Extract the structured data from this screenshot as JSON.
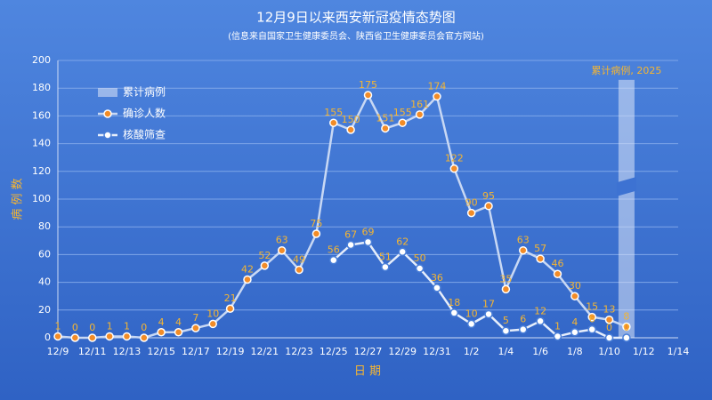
{
  "chart_data": {
    "type": "line",
    "title": "12月9日以来西安新冠疫情态势图",
    "subtitle": "(信息来自国家卫生健康委员会、陕西省卫生健康委员会官方网站)",
    "x_label": "日 期",
    "y_label": "病 例 数",
    "categories": [
      "12/9",
      null,
      "12/11",
      null,
      "12/13",
      null,
      "12/15",
      null,
      "12/17",
      null,
      "12/19",
      null,
      "12/21",
      null,
      "12/23",
      null,
      "12/25",
      null,
      "12/27",
      null,
      "12/29",
      null,
      "12/31",
      null,
      "1/2",
      null,
      "1/4",
      null,
      "1/6",
      null,
      "1/8",
      null,
      "1/10",
      null,
      "1/12",
      null,
      "1/14"
    ],
    "ylim": [
      0,
      200
    ],
    "yticks": [
      0,
      20,
      40,
      60,
      80,
      100,
      120,
      140,
      160,
      180,
      200
    ],
    "grid": true,
    "legend": "top-left",
    "series": [
      {
        "name": "确诊人数",
        "color": "#f28c28",
        "values": [
          1,
          0,
          0,
          1,
          1,
          0,
          4,
          4,
          7,
          10,
          21,
          42,
          52,
          63,
          49,
          75,
          155,
          150,
          175,
          151,
          155,
          161,
          174,
          122,
          90,
          95,
          35,
          63,
          57,
          46,
          30,
          15,
          13,
          8,
          null,
          null,
          null
        ]
      },
      {
        "name": "核酸筛查",
        "color": "#ffffff",
        "values": [
          null,
          null,
          null,
          null,
          null,
          null,
          null,
          null,
          null,
          null,
          null,
          null,
          null,
          null,
          null,
          null,
          56,
          67,
          69,
          51,
          62,
          50,
          36,
          18,
          10,
          17,
          5,
          6,
          12,
          1,
          4,
          6,
          0,
          0,
          null,
          null,
          null
        ]
      }
    ],
    "cumulative": {
      "type": "bar",
      "name": "累计病例",
      "index": 33,
      "value": 2025,
      "value_label": "累计病例, 2025",
      "color": "#dce6f7"
    }
  }
}
